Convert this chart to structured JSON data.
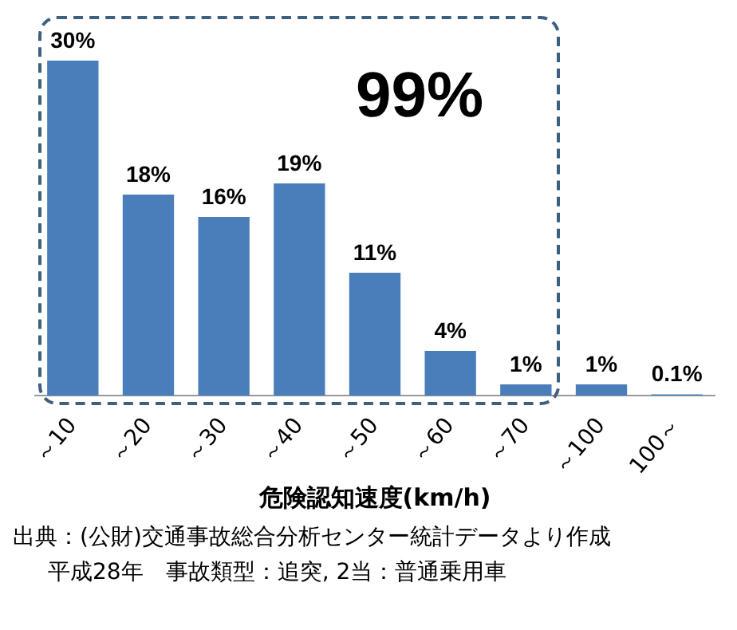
{
  "chart_data": {
    "type": "bar",
    "categories": [
      "～10",
      "～20",
      "～30",
      "～40",
      "～50",
      "～60",
      "～70",
      "～100",
      "100～"
    ],
    "values": [
      30,
      18,
      16,
      19,
      11,
      4,
      1,
      1,
      0.1
    ],
    "value_labels": [
      "30%",
      "18%",
      "16%",
      "19%",
      "11%",
      "4%",
      "1%",
      "1%",
      "0.1%"
    ],
    "color": "#4a7ebb",
    "xlabel": "危険認知速度(km/h)",
    "annotations": [
      "99%",
      "出典：(公財)交通事故総合分析センター統計データより作成",
      "平成28年　事故類型：追突, 2当：普通乗用車"
    ],
    "grid": false,
    "legend": false
  }
}
